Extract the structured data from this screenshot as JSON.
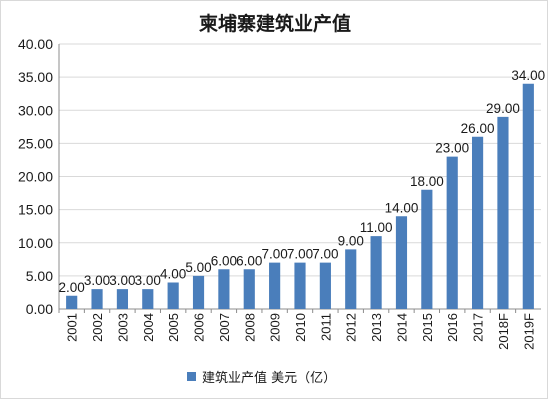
{
  "chart_data": {
    "type": "bar",
    "title": "柬埔寨建筑业产值",
    "categories": [
      "2001",
      "2002",
      "2003",
      "2004",
      "2005",
      "2006",
      "2007",
      "2008",
      "2009",
      "2010",
      "2011",
      "2012",
      "2013",
      "2014",
      "2015",
      "2016",
      "2017",
      "2018F",
      "2019F"
    ],
    "series": [
      {
        "name": "建筑业产值 美元（亿）",
        "values": [
          2,
          3,
          3,
          3,
          4,
          5,
          6,
          6,
          7,
          7,
          7,
          9,
          11,
          14,
          18,
          23,
          26,
          29,
          34
        ],
        "labels": [
          "2.00",
          "3.00",
          "3.00",
          "3.00",
          "4.00",
          "5.00",
          "6.00",
          "6.00",
          "7.00",
          "7.00",
          "7.00",
          "9.00",
          "11.00",
          "14.00",
          "18.00",
          "23.00",
          "26.00",
          "29.00",
          "34.00"
        ]
      }
    ],
    "yticks": [
      "0.00",
      "5.00",
      "10.00",
      "15.00",
      "20.00",
      "25.00",
      "30.00",
      "35.00",
      "40.00"
    ],
    "ylim": [
      0,
      40
    ],
    "grid": true,
    "legend_position": "bottom",
    "colors": {
      "bar": "#4a7ebb",
      "grid": "#d9d9d9",
      "axis": "#8c8c8c"
    }
  }
}
